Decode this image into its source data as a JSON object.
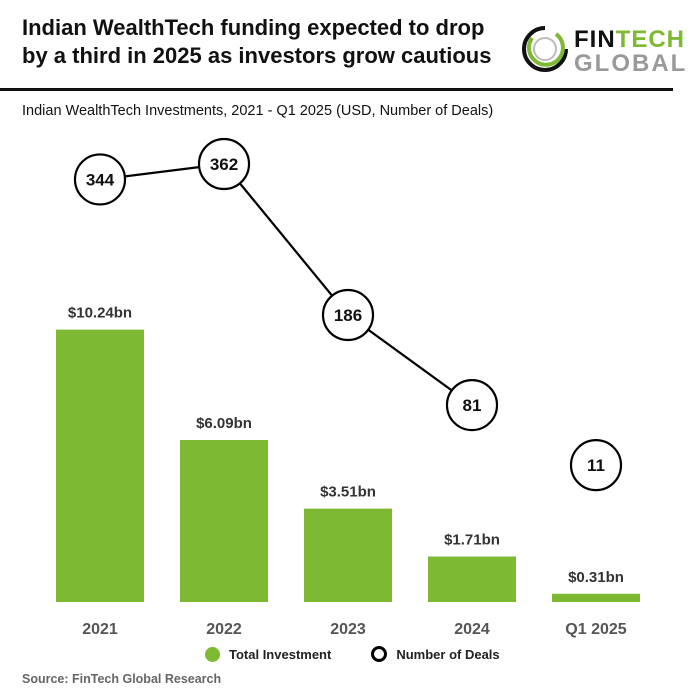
{
  "header": {
    "title_line1": "Indian WealthTech funding expected to drop",
    "title_line2": "by a third in 2025 as investors grow cautious",
    "logo": {
      "word1a": "FIN",
      "word1b": "TECH",
      "word2": "GLOBAL"
    }
  },
  "source": "Source: FinTech Global Research",
  "colors": {
    "bar": "#7db932",
    "circle_stroke": "#000000",
    "logo_green": "#7db932",
    "logo_gray": "#999999"
  },
  "chart_data": {
    "type": "bar+line",
    "title": "Indian WealthTech Investments, 2021 - Q1 2025 (USD, Number of Deals)",
    "categories": [
      "2021",
      "2022",
      "2023",
      "2024",
      "Q1 2025"
    ],
    "series": [
      {
        "name": "Total Investment",
        "type": "bar",
        "unit": "USD bn",
        "values": [
          10.24,
          6.09,
          3.51,
          1.71,
          0.31
        ],
        "labels": [
          "$10.24bn",
          "$6.09bn",
          "$3.51bn",
          "$1.71bn",
          "$0.31bn"
        ]
      },
      {
        "name": "Number of Deals",
        "type": "line",
        "values": [
          344,
          362,
          186,
          81,
          11
        ],
        "connected": [
          true,
          true,
          true,
          true,
          false
        ]
      }
    ],
    "legend": "bottom",
    "grid": false
  }
}
